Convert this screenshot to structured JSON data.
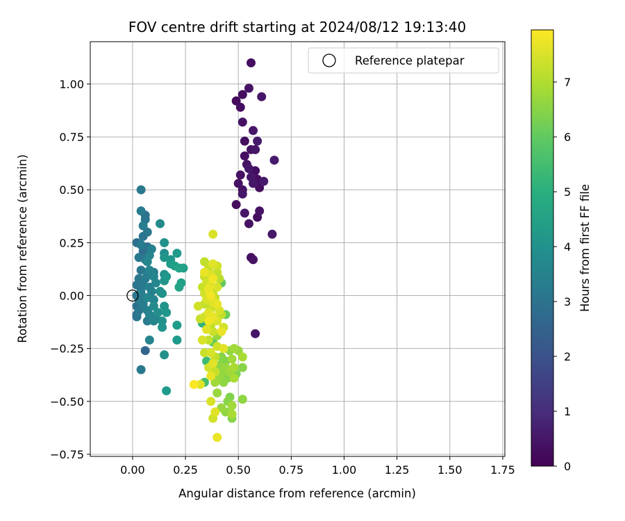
{
  "chart_data": {
    "type": "scatter",
    "title": "FOV centre drift starting at 2024/08/12 19:13:40",
    "xlabel": "Angular distance from reference (arcmin)",
    "ylabel": "Rotation from reference (arcmin)",
    "xlim": [
      -0.2,
      1.76
    ],
    "ylim": [
      -0.76,
      1.2
    ],
    "xticks": [
      0.0,
      0.25,
      0.5,
      0.75,
      1.0,
      1.25,
      1.5,
      1.75
    ],
    "xtick_labels": [
      "0.00",
      "0.25",
      "0.50",
      "0.75",
      "1.00",
      "1.25",
      "1.50",
      "1.75"
    ],
    "yticks": [
      -0.75,
      -0.5,
      -0.25,
      0.0,
      0.25,
      0.5,
      0.75,
      1.0
    ],
    "ytick_labels": [
      "−0.75",
      "−0.50",
      "−0.25",
      "0.00",
      "0.25",
      "0.50",
      "0.75",
      "1.00"
    ],
    "grid": true,
    "legend": {
      "placement": "top-right",
      "entries": [
        {
          "label": "Reference platepar",
          "marker": "open-circle"
        }
      ]
    },
    "reference_point": {
      "x": 0.0,
      "y": 0.0
    },
    "colorbar": {
      "label": "Hours from first FF file",
      "colormap": "viridis",
      "range": [
        0,
        7.95
      ],
      "ticks": [
        0,
        1,
        2,
        3,
        4,
        5,
        6,
        7
      ],
      "tick_labels": [
        "0",
        "1",
        "2",
        "3",
        "4",
        "5",
        "6",
        "7"
      ]
    },
    "points": [
      {
        "x": 0.56,
        "y": 1.1,
        "h": 0.3
      },
      {
        "x": 0.55,
        "y": 0.98,
        "h": 0.4
      },
      {
        "x": 0.52,
        "y": 0.95,
        "h": 0.3
      },
      {
        "x": 0.61,
        "y": 0.94,
        "h": 0.5
      },
      {
        "x": 0.49,
        "y": 0.92,
        "h": 0.2
      },
      {
        "x": 0.51,
        "y": 0.89,
        "h": 0.3
      },
      {
        "x": 0.52,
        "y": 0.82,
        "h": 0.4
      },
      {
        "x": 0.57,
        "y": 0.78,
        "h": 0.5
      },
      {
        "x": 0.53,
        "y": 0.73,
        "h": 0.3
      },
      {
        "x": 0.59,
        "y": 0.73,
        "h": 0.6
      },
      {
        "x": 0.56,
        "y": 0.69,
        "h": 0.4
      },
      {
        "x": 0.58,
        "y": 0.69,
        "h": 0.5
      },
      {
        "x": 0.53,
        "y": 0.66,
        "h": 0.3
      },
      {
        "x": 0.67,
        "y": 0.64,
        "h": 0.6
      },
      {
        "x": 0.54,
        "y": 0.62,
        "h": 0.4
      },
      {
        "x": 0.55,
        "y": 0.6,
        "h": 0.5
      },
      {
        "x": 0.58,
        "y": 0.59,
        "h": 0.3
      },
      {
        "x": 0.51,
        "y": 0.57,
        "h": 0.4
      },
      {
        "x": 0.56,
        "y": 0.56,
        "h": 0.5
      },
      {
        "x": 0.59,
        "y": 0.55,
        "h": 0.3
      },
      {
        "x": 0.62,
        "y": 0.54,
        "h": 0.6
      },
      {
        "x": 0.5,
        "y": 0.53,
        "h": 0.4
      },
      {
        "x": 0.57,
        "y": 0.53,
        "h": 0.5
      },
      {
        "x": 0.6,
        "y": 0.51,
        "h": 0.3
      },
      {
        "x": 0.52,
        "y": 0.5,
        "h": 0.4
      },
      {
        "x": 0.52,
        "y": 0.48,
        "h": 0.5
      },
      {
        "x": 0.49,
        "y": 0.43,
        "h": 0.3
      },
      {
        "x": 0.6,
        "y": 0.4,
        "h": 0.4
      },
      {
        "x": 0.53,
        "y": 0.39,
        "h": 0.5
      },
      {
        "x": 0.59,
        "y": 0.37,
        "h": 0.3
      },
      {
        "x": 0.55,
        "y": 0.34,
        "h": 0.4
      },
      {
        "x": 0.66,
        "y": 0.29,
        "h": 0.5
      },
      {
        "x": 0.56,
        "y": 0.18,
        "h": 0.3
      },
      {
        "x": 0.57,
        "y": 0.17,
        "h": 0.4
      },
      {
        "x": 0.58,
        "y": -0.18,
        "h": 0.5
      },
      {
        "x": 0.04,
        "y": 0.5,
        "h": 3.2
      },
      {
        "x": 0.04,
        "y": 0.4,
        "h": 3.3
      },
      {
        "x": 0.06,
        "y": 0.38,
        "h": 3.0
      },
      {
        "x": 0.06,
        "y": 0.36,
        "h": 3.1
      },
      {
        "x": 0.13,
        "y": 0.34,
        "h": 3.8
      },
      {
        "x": 0.05,
        "y": 0.33,
        "h": 3.4
      },
      {
        "x": 0.07,
        "y": 0.3,
        "h": 3.2
      },
      {
        "x": 0.05,
        "y": 0.28,
        "h": 3.1
      },
      {
        "x": 0.02,
        "y": 0.25,
        "h": 2.9
      },
      {
        "x": 0.15,
        "y": 0.25,
        "h": 4.0
      },
      {
        "x": 0.04,
        "y": 0.24,
        "h": 3.3
      },
      {
        "x": 0.07,
        "y": 0.23,
        "h": 3.0
      },
      {
        "x": 0.09,
        "y": 0.22,
        "h": 3.5
      },
      {
        "x": 0.05,
        "y": 0.21,
        "h": 2.8
      },
      {
        "x": 0.15,
        "y": 0.2,
        "h": 3.9
      },
      {
        "x": 0.21,
        "y": 0.2,
        "h": 4.3
      },
      {
        "x": 0.08,
        "y": 0.19,
        "h": 3.6
      },
      {
        "x": 0.03,
        "y": 0.18,
        "h": 3.2
      },
      {
        "x": 0.15,
        "y": 0.18,
        "h": 4.1
      },
      {
        "x": 0.06,
        "y": 0.17,
        "h": 3.3
      },
      {
        "x": 0.18,
        "y": 0.17,
        "h": 4.2
      },
      {
        "x": 0.07,
        "y": 0.16,
        "h": 3.7
      },
      {
        "x": 0.18,
        "y": 0.15,
        "h": 4.4
      },
      {
        "x": 0.2,
        "y": 0.14,
        "h": 4.5
      },
      {
        "x": 0.22,
        "y": 0.13,
        "h": 4.6
      },
      {
        "x": 0.24,
        "y": 0.13,
        "h": 4.5
      },
      {
        "x": 0.04,
        "y": 0.12,
        "h": 3.2
      },
      {
        "x": 0.08,
        "y": 0.12,
        "h": 3.6
      },
      {
        "x": 0.1,
        "y": 0.11,
        "h": 3.3
      },
      {
        "x": 0.07,
        "y": 0.1,
        "h": 3.4
      },
      {
        "x": 0.15,
        "y": 0.1,
        "h": 4.0
      },
      {
        "x": 0.1,
        "y": 0.09,
        "h": 3.6
      },
      {
        "x": 0.16,
        "y": 0.09,
        "h": 4.2
      },
      {
        "x": 0.03,
        "y": 0.08,
        "h": 3.2
      },
      {
        "x": 0.06,
        "y": 0.08,
        "h": 3.3
      },
      {
        "x": 0.15,
        "y": 0.07,
        "h": 4.1
      },
      {
        "x": 0.11,
        "y": 0.06,
        "h": 3.7
      },
      {
        "x": 0.23,
        "y": 0.06,
        "h": 4.5
      },
      {
        "x": 0.02,
        "y": 0.05,
        "h": 3.1
      },
      {
        "x": 0.05,
        "y": 0.05,
        "h": 3.3
      },
      {
        "x": 0.08,
        "y": 0.04,
        "h": 3.5
      },
      {
        "x": 0.22,
        "y": 0.04,
        "h": 4.6
      },
      {
        "x": 0.04,
        "y": 0.03,
        "h": 3.1
      },
      {
        "x": 0.09,
        "y": 0.02,
        "h": 3.5
      },
      {
        "x": 0.13,
        "y": 0.02,
        "h": 3.9
      },
      {
        "x": 0.04,
        "y": 0.01,
        "h": 3.4
      },
      {
        "x": 0.14,
        "y": 0.01,
        "h": 4.0
      },
      {
        "x": 0.02,
        "y": 0.0,
        "h": 3.1
      },
      {
        "x": 0.07,
        "y": -0.01,
        "h": 3.7
      },
      {
        "x": 0.03,
        "y": -0.02,
        "h": 3.2
      },
      {
        "x": 0.1,
        "y": -0.02,
        "h": 3.6
      },
      {
        "x": 0.05,
        "y": -0.04,
        "h": 3.4
      },
      {
        "x": 0.02,
        "y": -0.05,
        "h": 2.9
      },
      {
        "x": 0.1,
        "y": -0.05,
        "h": 3.8
      },
      {
        "x": 0.15,
        "y": -0.05,
        "h": 4.1
      },
      {
        "x": 0.03,
        "y": -0.07,
        "h": 3.2
      },
      {
        "x": 0.07,
        "y": -0.07,
        "h": 3.5
      },
      {
        "x": 0.12,
        "y": -0.08,
        "h": 3.9
      },
      {
        "x": 0.16,
        "y": -0.08,
        "h": 4.2
      },
      {
        "x": 0.02,
        "y": -0.09,
        "h": 3.0
      },
      {
        "x": 0.08,
        "y": -0.09,
        "h": 3.6
      },
      {
        "x": 0.02,
        "y": -0.1,
        "h": 3.1
      },
      {
        "x": 0.11,
        "y": -0.11,
        "h": 3.4
      },
      {
        "x": 0.07,
        "y": -0.12,
        "h": 3.3
      },
      {
        "x": 0.1,
        "y": -0.12,
        "h": 3.7
      },
      {
        "x": 0.14,
        "y": -0.12,
        "h": 4.0
      },
      {
        "x": 0.21,
        "y": -0.14,
        "h": 4.4
      },
      {
        "x": 0.14,
        "y": -0.15,
        "h": 4.1
      },
      {
        "x": 0.08,
        "y": -0.21,
        "h": 3.6
      },
      {
        "x": 0.21,
        "y": -0.21,
        "h": 4.3
      },
      {
        "x": 0.06,
        "y": -0.26,
        "h": 2.6
      },
      {
        "x": 0.15,
        "y": -0.28,
        "h": 4.0
      },
      {
        "x": 0.04,
        "y": -0.35,
        "h": 3.2
      },
      {
        "x": 0.16,
        "y": -0.45,
        "h": 4.3
      },
      {
        "x": 0.38,
        "y": 0.29,
        "h": 7.5
      },
      {
        "x": 0.34,
        "y": 0.16,
        "h": 7.2
      },
      {
        "x": 0.38,
        "y": 0.15,
        "h": 7.6
      },
      {
        "x": 0.36,
        "y": 0.13,
        "h": 7.3
      },
      {
        "x": 0.4,
        "y": 0.14,
        "h": 7.4
      },
      {
        "x": 0.34,
        "y": 0.11,
        "h": 7.7
      },
      {
        "x": 0.37,
        "y": 0.1,
        "h": 7.5
      },
      {
        "x": 0.4,
        "y": 0.11,
        "h": 7.2
      },
      {
        "x": 0.34,
        "y": 0.09,
        "h": 7.3
      },
      {
        "x": 0.38,
        "y": 0.08,
        "h": 7.8
      },
      {
        "x": 0.41,
        "y": 0.08,
        "h": 7.1
      },
      {
        "x": 0.35,
        "y": 0.06,
        "h": 7.4
      },
      {
        "x": 0.42,
        "y": 0.06,
        "h": 6.0
      },
      {
        "x": 0.37,
        "y": 0.05,
        "h": 7.6
      },
      {
        "x": 0.33,
        "y": 0.04,
        "h": 7.3
      },
      {
        "x": 0.4,
        "y": 0.04,
        "h": 7.5
      },
      {
        "x": 0.36,
        "y": 0.03,
        "h": 7.7
      },
      {
        "x": 0.38,
        "y": 0.02,
        "h": 7.2
      },
      {
        "x": 0.34,
        "y": 0.01,
        "h": 7.4
      },
      {
        "x": 0.37,
        "y": 0.0,
        "h": 7.8
      },
      {
        "x": 0.39,
        "y": -0.01,
        "h": 7.3
      },
      {
        "x": 0.35,
        "y": -0.02,
        "h": 7.5
      },
      {
        "x": 0.38,
        "y": -0.03,
        "h": 7.6
      },
      {
        "x": 0.34,
        "y": -0.04,
        "h": 7.2
      },
      {
        "x": 0.4,
        "y": -0.04,
        "h": 7.7
      },
      {
        "x": 0.31,
        "y": -0.05,
        "h": 7.4
      },
      {
        "x": 0.37,
        "y": -0.06,
        "h": 7.3
      },
      {
        "x": 0.41,
        "y": -0.07,
        "h": 7.5
      },
      {
        "x": 0.36,
        "y": -0.08,
        "h": 7.6
      },
      {
        "x": 0.42,
        "y": -0.09,
        "h": 7.2
      },
      {
        "x": 0.34,
        "y": -0.1,
        "h": 7.4
      },
      {
        "x": 0.38,
        "y": -0.1,
        "h": 7.7
      },
      {
        "x": 0.44,
        "y": -0.09,
        "h": 6.1
      },
      {
        "x": 0.32,
        "y": -0.11,
        "h": 7.3
      },
      {
        "x": 0.4,
        "y": -0.12,
        "h": 7.5
      },
      {
        "x": 0.36,
        "y": -0.12,
        "h": 7.8
      },
      {
        "x": 0.33,
        "y": -0.13,
        "h": 5.1
      },
      {
        "x": 0.37,
        "y": -0.14,
        "h": 7.2
      },
      {
        "x": 0.43,
        "y": -0.15,
        "h": 7.4
      },
      {
        "x": 0.35,
        "y": -0.16,
        "h": 7.6
      },
      {
        "x": 0.38,
        "y": -0.17,
        "h": 7.3
      },
      {
        "x": 0.42,
        "y": -0.17,
        "h": 7.7
      },
      {
        "x": 0.4,
        "y": -0.19,
        "h": 6.7
      },
      {
        "x": 0.33,
        "y": -0.21,
        "h": 7.5
      },
      {
        "x": 0.36,
        "y": -0.21,
        "h": 7.2
      },
      {
        "x": 0.38,
        "y": -0.22,
        "h": 5.9
      },
      {
        "x": 0.4,
        "y": -0.24,
        "h": 7.4
      },
      {
        "x": 0.43,
        "y": -0.25,
        "h": 7.6
      },
      {
        "x": 0.48,
        "y": -0.25,
        "h": 6.8
      },
      {
        "x": 0.34,
        "y": -0.27,
        "h": 7.3
      },
      {
        "x": 0.37,
        "y": -0.27,
        "h": 7.5
      },
      {
        "x": 0.46,
        "y": -0.26,
        "h": 6.6
      },
      {
        "x": 0.5,
        "y": -0.26,
        "h": 6.7
      },
      {
        "x": 0.39,
        "y": -0.29,
        "h": 7.2
      },
      {
        "x": 0.42,
        "y": -0.29,
        "h": 6.5
      },
      {
        "x": 0.52,
        "y": -0.29,
        "h": 6.9
      },
      {
        "x": 0.35,
        "y": -0.31,
        "h": 5.4
      },
      {
        "x": 0.38,
        "y": -0.32,
        "h": 7.6
      },
      {
        "x": 0.44,
        "y": -0.31,
        "h": 6.4
      },
      {
        "x": 0.47,
        "y": -0.3,
        "h": 6.8
      },
      {
        "x": 0.41,
        "y": -0.33,
        "h": 6.6
      },
      {
        "x": 0.36,
        "y": -0.34,
        "h": 7.4
      },
      {
        "x": 0.44,
        "y": -0.34,
        "h": 6.7
      },
      {
        "x": 0.48,
        "y": -0.34,
        "h": 6.9
      },
      {
        "x": 0.52,
        "y": -0.34,
        "h": 6.5
      },
      {
        "x": 0.39,
        "y": -0.36,
        "h": 7.3
      },
      {
        "x": 0.43,
        "y": -0.36,
        "h": 6.6
      },
      {
        "x": 0.46,
        "y": -0.36,
        "h": 6.8
      },
      {
        "x": 0.49,
        "y": -0.37,
        "h": 6.4
      },
      {
        "x": 0.37,
        "y": -0.38,
        "h": 7.7
      },
      {
        "x": 0.41,
        "y": -0.38,
        "h": 6.7
      },
      {
        "x": 0.45,
        "y": -0.39,
        "h": 6.5
      },
      {
        "x": 0.48,
        "y": -0.39,
        "h": 6.9
      },
      {
        "x": 0.43,
        "y": -0.41,
        "h": 6.6
      },
      {
        "x": 0.39,
        "y": -0.41,
        "h": 6.8
      },
      {
        "x": 0.29,
        "y": -0.42,
        "h": 7.9
      },
      {
        "x": 0.32,
        "y": -0.42,
        "h": 7.6
      },
      {
        "x": 0.34,
        "y": -0.41,
        "h": 5.6
      },
      {
        "x": 0.4,
        "y": -0.46,
        "h": 6.7
      },
      {
        "x": 0.46,
        "y": -0.48,
        "h": 6.4
      },
      {
        "x": 0.52,
        "y": -0.49,
        "h": 6.6
      },
      {
        "x": 0.37,
        "y": -0.5,
        "h": 7.5
      },
      {
        "x": 0.45,
        "y": -0.5,
        "h": 6.5
      },
      {
        "x": 0.47,
        "y": -0.52,
        "h": 6.8
      },
      {
        "x": 0.42,
        "y": -0.53,
        "h": 6.7
      },
      {
        "x": 0.39,
        "y": -0.55,
        "h": 7.6
      },
      {
        "x": 0.44,
        "y": -0.55,
        "h": 6.6
      },
      {
        "x": 0.47,
        "y": -0.56,
        "h": 6.9
      },
      {
        "x": 0.38,
        "y": -0.58,
        "h": 7.4
      },
      {
        "x": 0.47,
        "y": -0.58,
        "h": 6.5
      },
      {
        "x": 0.4,
        "y": -0.67,
        "h": 7.7
      }
    ]
  }
}
